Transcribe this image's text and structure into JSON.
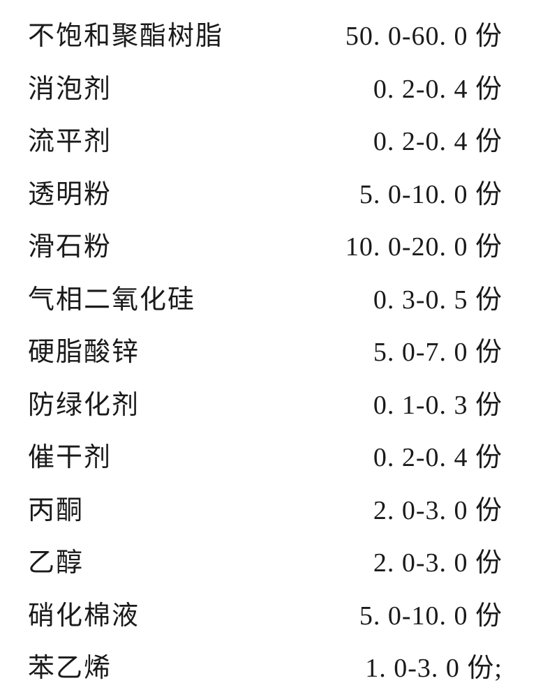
{
  "composition": {
    "rows": [
      {
        "ingredient": "不饱和聚酯树脂",
        "amount": "50. 0-60. 0 份"
      },
      {
        "ingredient": "消泡剂",
        "amount": "0. 2-0. 4 份"
      },
      {
        "ingredient": "流平剂",
        "amount": "0. 2-0. 4 份"
      },
      {
        "ingredient": "透明粉",
        "amount": "5. 0-10. 0 份"
      },
      {
        "ingredient": "滑石粉",
        "amount": "10. 0-20. 0 份"
      },
      {
        "ingredient": "气相二氧化硅",
        "amount": "0. 3-0. 5 份"
      },
      {
        "ingredient": "硬脂酸锌",
        "amount": "5. 0-7. 0 份"
      },
      {
        "ingredient": "防绿化剂",
        "amount": "0. 1-0. 3 份"
      },
      {
        "ingredient": "催干剂",
        "amount": "0. 2-0. 4 份"
      },
      {
        "ingredient": "丙酮",
        "amount": "2. 0-3. 0 份"
      },
      {
        "ingredient": "乙醇",
        "amount": "2. 0-3. 0 份"
      },
      {
        "ingredient": "硝化棉液",
        "amount": "5. 0-10. 0 份"
      },
      {
        "ingredient": "苯乙烯",
        "amount": "1. 0-3. 0 份;"
      }
    ],
    "text_color": "#1a1a1a",
    "background_color": "#ffffff",
    "font_size": 38,
    "font_family": "SimSun",
    "ingredient_col_width": 320,
    "amount_col_width": 360,
    "row_height": 75.5
  }
}
